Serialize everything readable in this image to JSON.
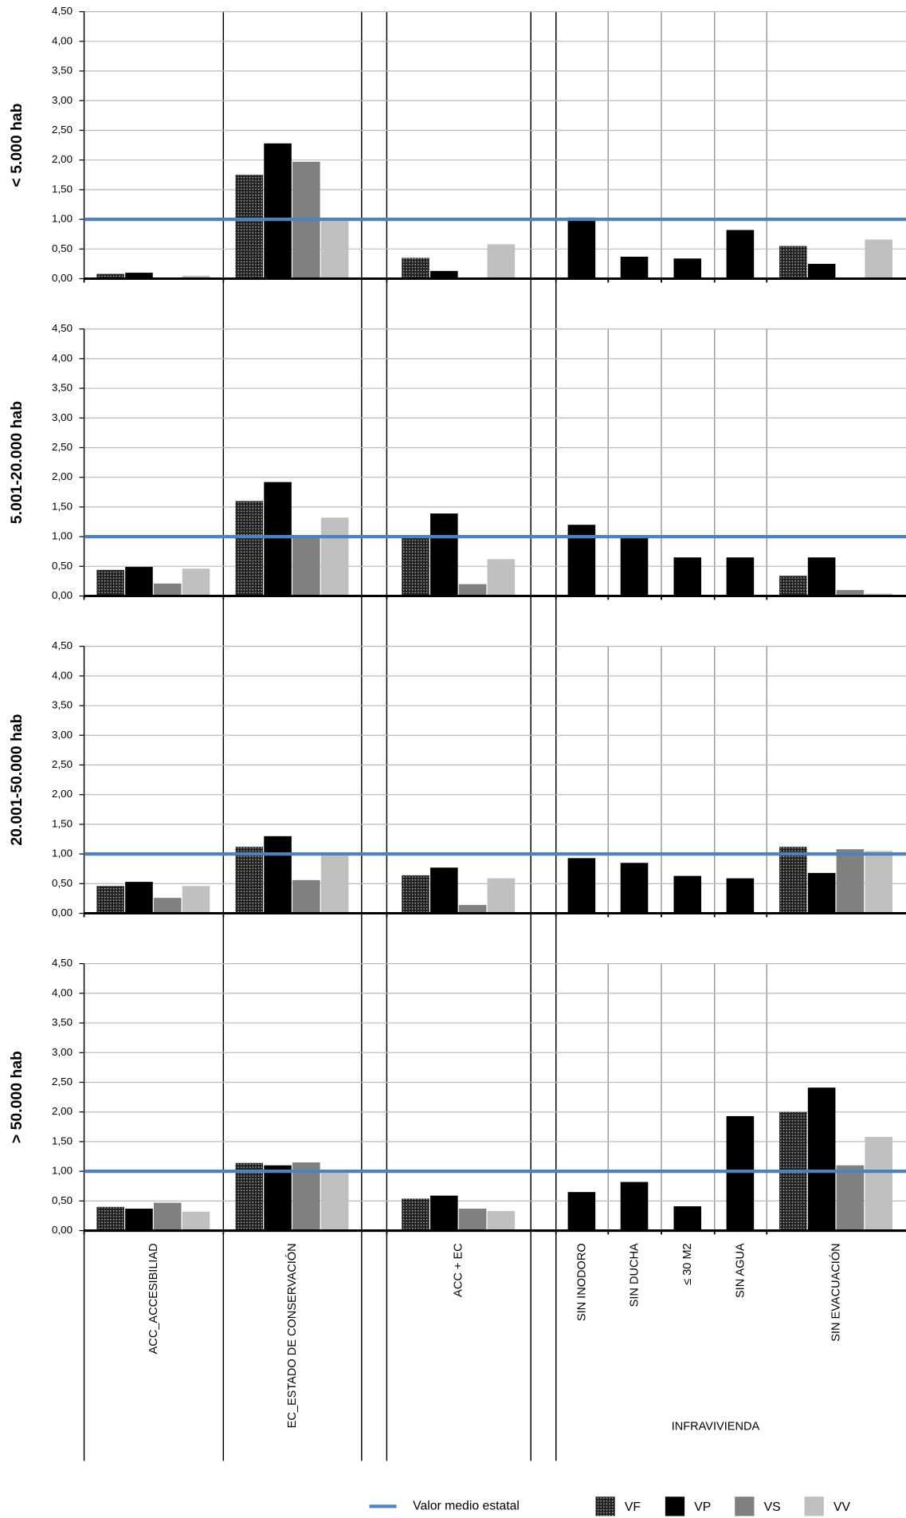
{
  "chart_data": {
    "type": "bar",
    "categories": [
      "ACC_ACCESIBILIAD",
      "EC_ESTADO DE CONSERVACIÓN",
      "ACC + EC",
      "SIN INODORO",
      "SIN DUCHA",
      "≤ 30 M2",
      "SIN AGUA",
      "SIN EVACUACIÓN"
    ],
    "group_label": "INFRAVIVIENDA",
    "series": [
      {
        "name": "VF",
        "color": "#2b2b2b",
        "pattern": "dots"
      },
      {
        "name": "VP",
        "color": "#000000"
      },
      {
        "name": "VS",
        "color": "#808080"
      },
      {
        "name": "VV",
        "color": "#c0c0c0"
      }
    ],
    "reference": {
      "name": "Valor medio estatal",
      "value": 1,
      "color": "#4f81bd"
    },
    "ylim": [
      0,
      4.5
    ],
    "yticks": [
      {
        "value": 0,
        "label": "0,00"
      },
      {
        "value": 0.5,
        "label": "0,50"
      },
      {
        "value": 1,
        "label": "1,00"
      },
      {
        "value": 1.5,
        "label": "1,50"
      },
      {
        "value": 2,
        "label": "2,00"
      },
      {
        "value": 2.5,
        "label": "2,50"
      },
      {
        "value": 3,
        "label": "3,00"
      },
      {
        "value": 3.5,
        "label": "3,50"
      },
      {
        "value": 4,
        "label": "4,00"
      },
      {
        "value": 4.5,
        "label": "4,50"
      }
    ],
    "grid": true,
    "panels": [
      {
        "ylabel": "< 5.000 hab",
        "values": [
          [
            0.08,
            1.75,
            0.35,
            null,
            null,
            null,
            null,
            0.55
          ],
          [
            0.1,
            2.28,
            0.13,
            1.03,
            0.37,
            0.34,
            0.82,
            0.25
          ],
          [
            0,
            1.97,
            0,
            null,
            null,
            null,
            null,
            0
          ],
          [
            0.05,
            0.97,
            0.58,
            null,
            null,
            null,
            null,
            0.66
          ]
        ]
      },
      {
        "ylabel": "5.001-20.000 hab",
        "values": [
          [
            0.44,
            1.6,
            0.98,
            null,
            null,
            null,
            null,
            0.34
          ],
          [
            0.49,
            1.92,
            1.39,
            1.2,
            0.98,
            0.65,
            0.65,
            0.65
          ],
          [
            0.21,
            1.0,
            0.2,
            null,
            null,
            null,
            null,
            0.1
          ],
          [
            0.46,
            1.32,
            0.62,
            null,
            null,
            null,
            null,
            0.04
          ]
        ]
      },
      {
        "ylabel": "20.001-50.000 hab",
        "values": [
          [
            0.46,
            1.12,
            0.64,
            null,
            null,
            null,
            null,
            1.12
          ],
          [
            0.53,
            1.3,
            0.77,
            0.93,
            0.85,
            0.63,
            0.59,
            0.68
          ],
          [
            0.26,
            0.56,
            0.14,
            null,
            null,
            null,
            null,
            1.08
          ],
          [
            0.46,
            0.97,
            0.59,
            null,
            null,
            null,
            null,
            1.05
          ]
        ]
      },
      {
        "ylabel": "> 50.000 hab",
        "values": [
          [
            0.4,
            1.14,
            0.54,
            null,
            null,
            null,
            null,
            2.0
          ],
          [
            0.37,
            1.1,
            0.59,
            0.65,
            0.82,
            0.41,
            1.93,
            2.41
          ],
          [
            0.47,
            1.15,
            0.37,
            null,
            null,
            null,
            null,
            1.1
          ],
          [
            0.32,
            0.97,
            0.33,
            null,
            null,
            null,
            null,
            1.58
          ]
        ]
      }
    ]
  }
}
